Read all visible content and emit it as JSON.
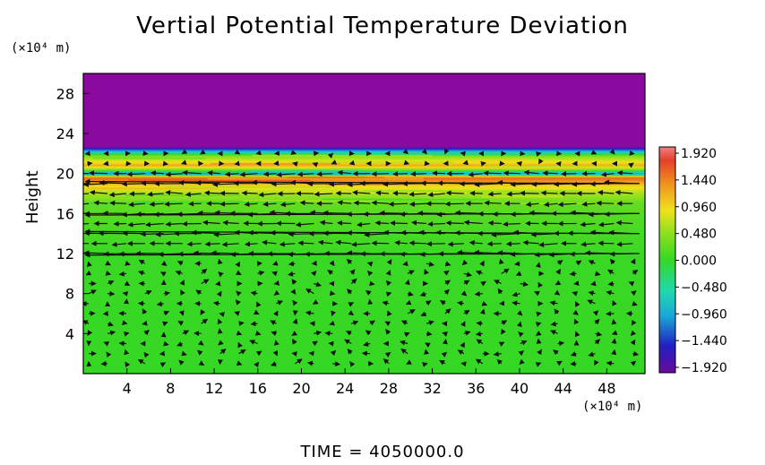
{
  "chart_data": {
    "type": "heatmap",
    "title": "Vertial Potential Temperature Deviation",
    "ylabel": "Height",
    "xlabel": "",
    "x_unit": "(×10⁴ m)",
    "y_unit": "(×10⁴ m)",
    "xlim": [
      0,
      51.5
    ],
    "ylim": [
      0,
      30
    ],
    "x_ticks": [
      "4",
      "8",
      "12",
      "16",
      "20",
      "24",
      "28",
      "32",
      "36",
      "40",
      "44",
      "48"
    ],
    "y_ticks": [
      "4",
      "8",
      "12",
      "16",
      "20",
      "24",
      "28"
    ],
    "colorbar": {
      "labels": [
        "1.920",
        "1.440",
        "0.960",
        "0.480",
        "0.000",
        "−0.480",
        "−0.960",
        "−1.440",
        "−1.920"
      ],
      "range": [
        -1.92,
        1.92
      ]
    },
    "value_profile": [
      {
        "height": 0,
        "value": 0.0
      },
      {
        "height": 11.5,
        "value": 0.02
      },
      {
        "height": 15.0,
        "value": 0.12
      },
      {
        "height": 17.0,
        "value": 0.22
      },
      {
        "height": 18.0,
        "value": 0.55
      },
      {
        "height": 19.0,
        "value": 1.2
      },
      {
        "height": 19.6,
        "value": 1.7
      },
      {
        "height": 20.0,
        "value": -0.9
      },
      {
        "height": 20.4,
        "value": 0.35
      },
      {
        "height": 20.8,
        "value": 1.3
      },
      {
        "height": 21.3,
        "value": 0.8
      },
      {
        "height": 21.8,
        "value": 0.3
      },
      {
        "height": 22.2,
        "value": -0.6
      },
      {
        "height": 22.5,
        "value": -1.5
      },
      {
        "height": 22.7,
        "value": -1.92
      },
      {
        "height": 30,
        "value": -1.92
      }
    ],
    "wind_field": {
      "description": "quiver vectors, mainly westward in 11-20 km layer",
      "jet_levels": [
        12,
        14,
        16,
        19
      ]
    },
    "colors": {
      "min": "#8a0aa0",
      "low": "#1c2bd0",
      "zero": "#35d825",
      "mid": "#f0e21a",
      "max": "#e24028"
    }
  },
  "footer": {
    "time_text": "TIME  =  4050000.0"
  }
}
